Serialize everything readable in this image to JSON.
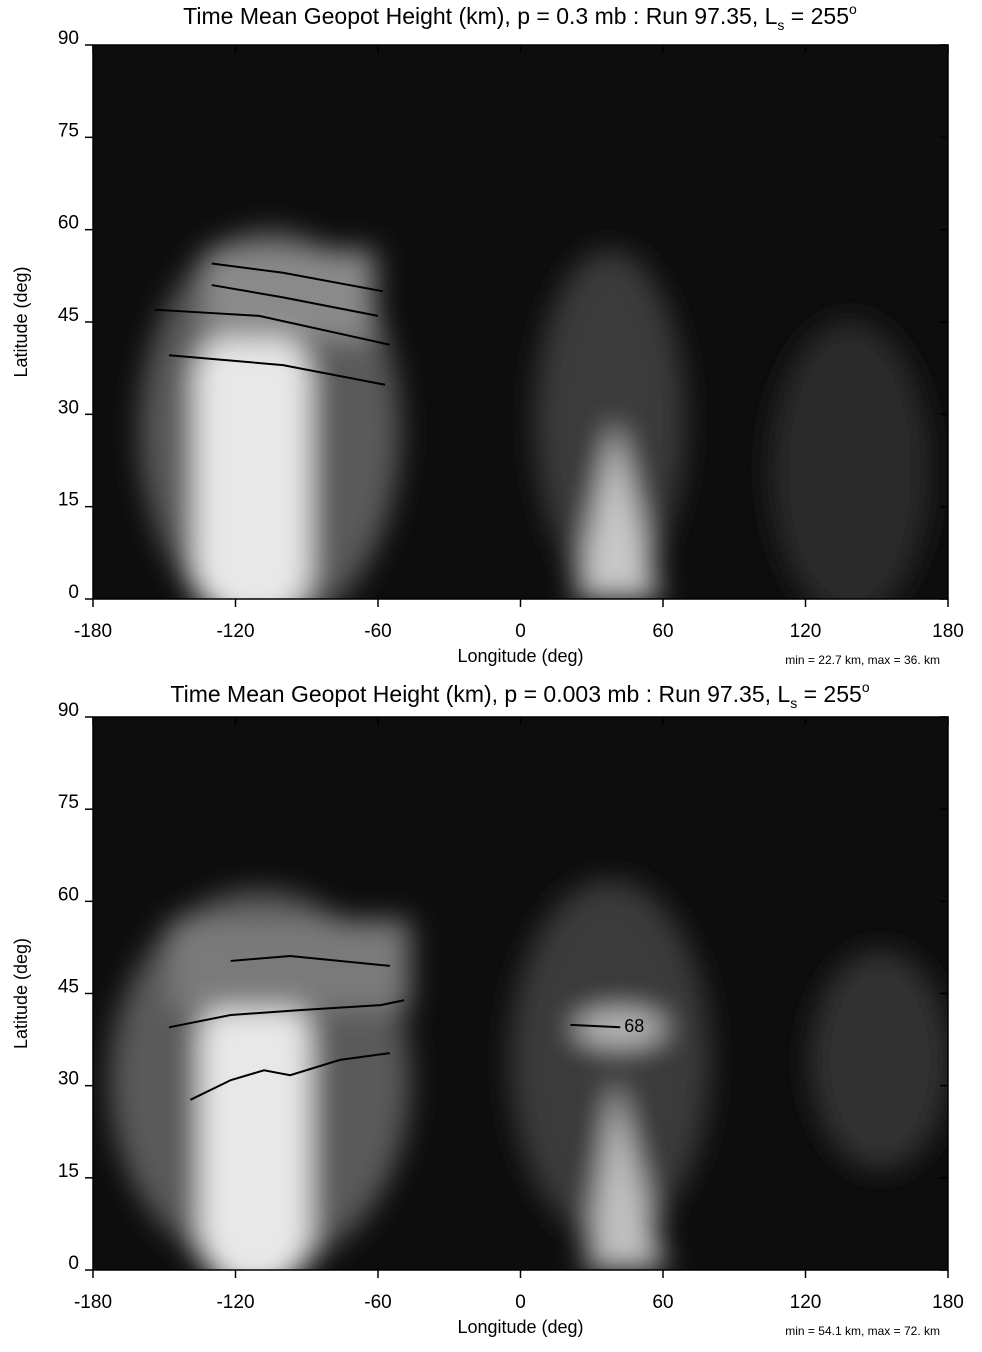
{
  "chart_data": [
    {
      "type": "contour",
      "title": [
        "Time Mean Geopot Height (km), p = 0.3 mb : Run 97.35, L",
        "s",
        " = 255",
        "o"
      ],
      "x_label": "Longitude (deg)",
      "y_label": "Latitude (deg)",
      "note": "min = 22.7 km, max = 36. km",
      "xlim": [
        -180,
        180
      ],
      "xticks": [
        -180,
        -120,
        -60,
        0,
        60,
        120,
        180
      ],
      "ylim": [
        0,
        90
      ],
      "yticks": [
        0,
        15,
        30,
        45,
        60,
        75,
        90
      ],
      "series": [
        {
          "x": [
            -130,
            -100,
            -58
          ],
          "y": [
            54.5,
            53,
            50
          ]
        },
        {
          "x": [
            -130,
            -100,
            -60
          ],
          "y": [
            51,
            49,
            46
          ]
        },
        {
          "x": [
            -154,
            -110,
            -55
          ],
          "y": [
            47,
            46,
            41.3
          ]
        },
        {
          "x": [
            -148,
            -100,
            -57
          ],
          "y": [
            39.6,
            38,
            34.8
          ]
        }
      ]
    },
    {
      "type": "contour",
      "title": [
        "Time Mean Geopot Height (km), p = 0.003 mb : Run 97.35, L",
        "s",
        " = 255",
        "o"
      ],
      "x_label": "Longitude (deg)",
      "y_label": "Latitude (deg)",
      "note": "min = 54.1 km, max = 72. km",
      "xlim": [
        -180,
        180
      ],
      "xticks": [
        -180,
        -120,
        -60,
        0,
        60,
        120,
        180
      ],
      "ylim": [
        0,
        90
      ],
      "yticks": [
        0,
        15,
        30,
        45,
        60,
        75,
        90
      ],
      "series": [
        {
          "x": [
            -122,
            -97,
            -55
          ],
          "y": [
            50.3,
            51.1,
            49.5
          ]
        },
        {
          "x": [
            -148,
            -122,
            -93,
            -59,
            -49
          ],
          "y": [
            39.5,
            41.5,
            42.3,
            43.1,
            43.9
          ]
        },
        {
          "x": [
            -139,
            -122,
            -108,
            -97,
            -76,
            -55
          ],
          "y": [
            27.7,
            30.9,
            32.5,
            31.7,
            34.2,
            35.3
          ]
        },
        {
          "x": [
            21,
            42
          ],
          "y": [
            39.9,
            39.5
          ],
          "label": "68"
        }
      ]
    }
  ]
}
